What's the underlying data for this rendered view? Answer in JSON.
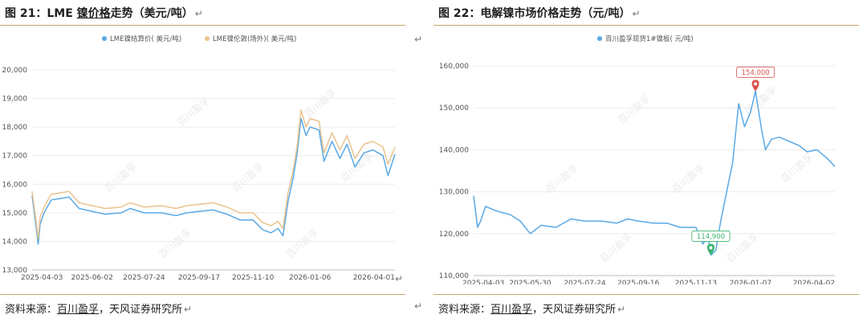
{
  "charts": [
    {
      "title_prefix": "图 21：LME ",
      "title_underlined": "镍价格",
      "title_suffix": "走势（美元/吨）",
      "source_prefix": "资料来源：",
      "source_underlined": "百川盈孚",
      "source_suffix": "，天风证券研究所",
      "watermark": "百川盈孚",
      "return_glyph": "↵"
    },
    {
      "title_prefix": "图 22：电解镍市场价格走势（元/吨）",
      "title_underlined": "",
      "title_suffix": "",
      "source_prefix": "资料来源：",
      "source_underlined": "百川盈孚",
      "source_suffix": "，天风证券研究所",
      "watermark": "百川盈孚",
      "return_glyph": "↵"
    }
  ],
  "chart_data": [
    {
      "type": "line",
      "title": "",
      "xlabel": "",
      "ylabel": "",
      "x_ticks": [
        "2025-04-03",
        "2025-06-02",
        "2025-07-24",
        "2025-09-17",
        "2025-11-10",
        "2026-01-06",
        "2026-04-01"
      ],
      "y_ticks": [
        "13,000",
        "14,000",
        "15,000",
        "16,000",
        "17,000",
        "18,000",
        "19,000",
        "20,000"
      ],
      "ylim": [
        13000,
        20000
      ],
      "grid": true,
      "legend_position": "top-center",
      "series": [
        {
          "name": "LME镍结算价( 美元/吨)",
          "color": "#5aa9e6",
          "x": [
            "2025-04-03",
            "2025-04-07",
            "2025-04-09",
            "2025-04-11",
            "2025-04-15",
            "2025-04-22",
            "2025-05-01",
            "2025-05-10",
            "2025-05-20",
            "2025-06-02",
            "2025-06-15",
            "2025-07-01",
            "2025-07-10",
            "2025-07-24",
            "2025-08-10",
            "2025-08-25",
            "2025-09-05",
            "2025-09-17",
            "2025-10-01",
            "2025-10-15",
            "2025-10-28",
            "2025-11-10",
            "2025-11-20",
            "2025-11-28",
            "2025-12-05",
            "2025-12-10",
            "2025-12-15",
            "2025-12-20",
            "2025-12-24",
            "2025-12-28",
            "2026-01-02",
            "2026-01-06",
            "2026-01-15",
            "2026-01-20",
            "2026-01-28",
            "2026-02-05",
            "2026-02-12",
            "2026-02-20",
            "2026-03-01",
            "2026-03-10",
            "2026-03-20",
            "2026-03-25",
            "2026-04-01"
          ],
          "values": [
            15600,
            14500,
            13900,
            14600,
            15000,
            15450,
            15500,
            15550,
            15150,
            15050,
            14950,
            15000,
            15150,
            15000,
            15000,
            14900,
            15000,
            15050,
            15100,
            14950,
            14750,
            14750,
            14400,
            14300,
            14450,
            14200,
            15400,
            16200,
            17050,
            18300,
            17700,
            18000,
            17900,
            16800,
            17500,
            16900,
            17400,
            16600,
            17100,
            17200,
            17000,
            16300,
            17050
          ]
        },
        {
          "name": "LME镍伦敦(场外)( 美元/吨)",
          "color": "#e8c38f",
          "x": [
            "2025-04-03",
            "2025-04-07",
            "2025-04-09",
            "2025-04-11",
            "2025-04-15",
            "2025-04-22",
            "2025-05-01",
            "2025-05-10",
            "2025-05-20",
            "2025-06-02",
            "2025-06-15",
            "2025-07-01",
            "2025-07-10",
            "2025-07-24",
            "2025-08-10",
            "2025-08-25",
            "2025-09-05",
            "2025-09-17",
            "2025-10-01",
            "2025-10-15",
            "2025-10-28",
            "2025-11-10",
            "2025-11-20",
            "2025-11-28",
            "2025-12-05",
            "2025-12-10",
            "2025-12-15",
            "2025-12-20",
            "2025-12-24",
            "2025-12-28",
            "2026-01-02",
            "2026-01-06",
            "2026-01-15",
            "2026-01-20",
            "2026-01-28",
            "2026-02-05",
            "2026-02-12",
            "2026-02-20",
            "2026-03-01",
            "2026-03-10",
            "2026-03-20",
            "2026-03-25",
            "2026-04-01"
          ],
          "values": [
            15750,
            14700,
            14100,
            14850,
            15200,
            15650,
            15700,
            15750,
            15350,
            15250,
            15150,
            15200,
            15350,
            15200,
            15250,
            15150,
            15250,
            15300,
            15350,
            15200,
            15000,
            15000,
            14650,
            14550,
            14700,
            14450,
            15700,
            16450,
            17300,
            18600,
            18000,
            18300,
            18200,
            17100,
            17800,
            17200,
            17700,
            16900,
            17400,
            17500,
            17300,
            16700,
            17300
          ]
        }
      ]
    },
    {
      "type": "line",
      "title": "",
      "xlabel": "",
      "ylabel": "",
      "x_ticks": [
        "2025-04-03",
        "2025-05-30",
        "2025-07-24",
        "2025-09-16",
        "2025-11-13",
        "2026-01-07",
        "2026-04-02"
      ],
      "y_ticks": [
        "110,000",
        "120,000",
        "130,000",
        "140,000",
        "150,000",
        "160,000"
      ],
      "ylim": [
        110000,
        160000
      ],
      "grid": true,
      "legend_position": "top-center",
      "series": [
        {
          "name": "百川盈孚现货1#镍板( 元/吨)",
          "color": "#5aa9e6",
          "x": [
            "2025-04-03",
            "2025-04-07",
            "2025-04-10",
            "2025-04-15",
            "2025-04-25",
            "2025-05-10",
            "2025-05-20",
            "2025-05-30",
            "2025-06-10",
            "2025-06-25",
            "2025-07-10",
            "2025-07-24",
            "2025-08-10",
            "2025-08-25",
            "2025-09-05",
            "2025-09-16",
            "2025-10-01",
            "2025-10-15",
            "2025-10-28",
            "2025-11-13",
            "2025-11-20",
            "2025-11-25",
            "2025-11-28",
            "2025-12-03",
            "2025-12-08",
            "2025-12-14",
            "2025-12-20",
            "2025-12-26",
            "2026-01-01",
            "2026-01-07",
            "2026-01-12",
            "2026-01-18",
            "2026-01-22",
            "2026-01-28",
            "2026-02-05",
            "2026-02-15",
            "2026-02-25",
            "2026-03-05",
            "2026-03-15",
            "2026-03-25",
            "2026-04-02"
          ],
          "values": [
            129000,
            121500,
            123000,
            126500,
            125500,
            124500,
            123000,
            120000,
            122000,
            121500,
            123500,
            123000,
            123000,
            122500,
            123500,
            123000,
            122500,
            122500,
            121500,
            121500,
            117500,
            119500,
            114900,
            116000,
            123000,
            130000,
            137000,
            151000,
            145500,
            149000,
            154000,
            145000,
            140000,
            142500,
            143000,
            142000,
            141000,
            139500,
            140000,
            138000,
            136000
          ]
        }
      ],
      "annotations": [
        {
          "label": "154,000",
          "type": "max",
          "x": "2026-01-12",
          "value": 154000,
          "color": "#d9534f"
        },
        {
          "label": "114,900",
          "type": "min",
          "x": "2025-11-28",
          "value": 114900,
          "color": "#3cb371"
        }
      ]
    }
  ]
}
